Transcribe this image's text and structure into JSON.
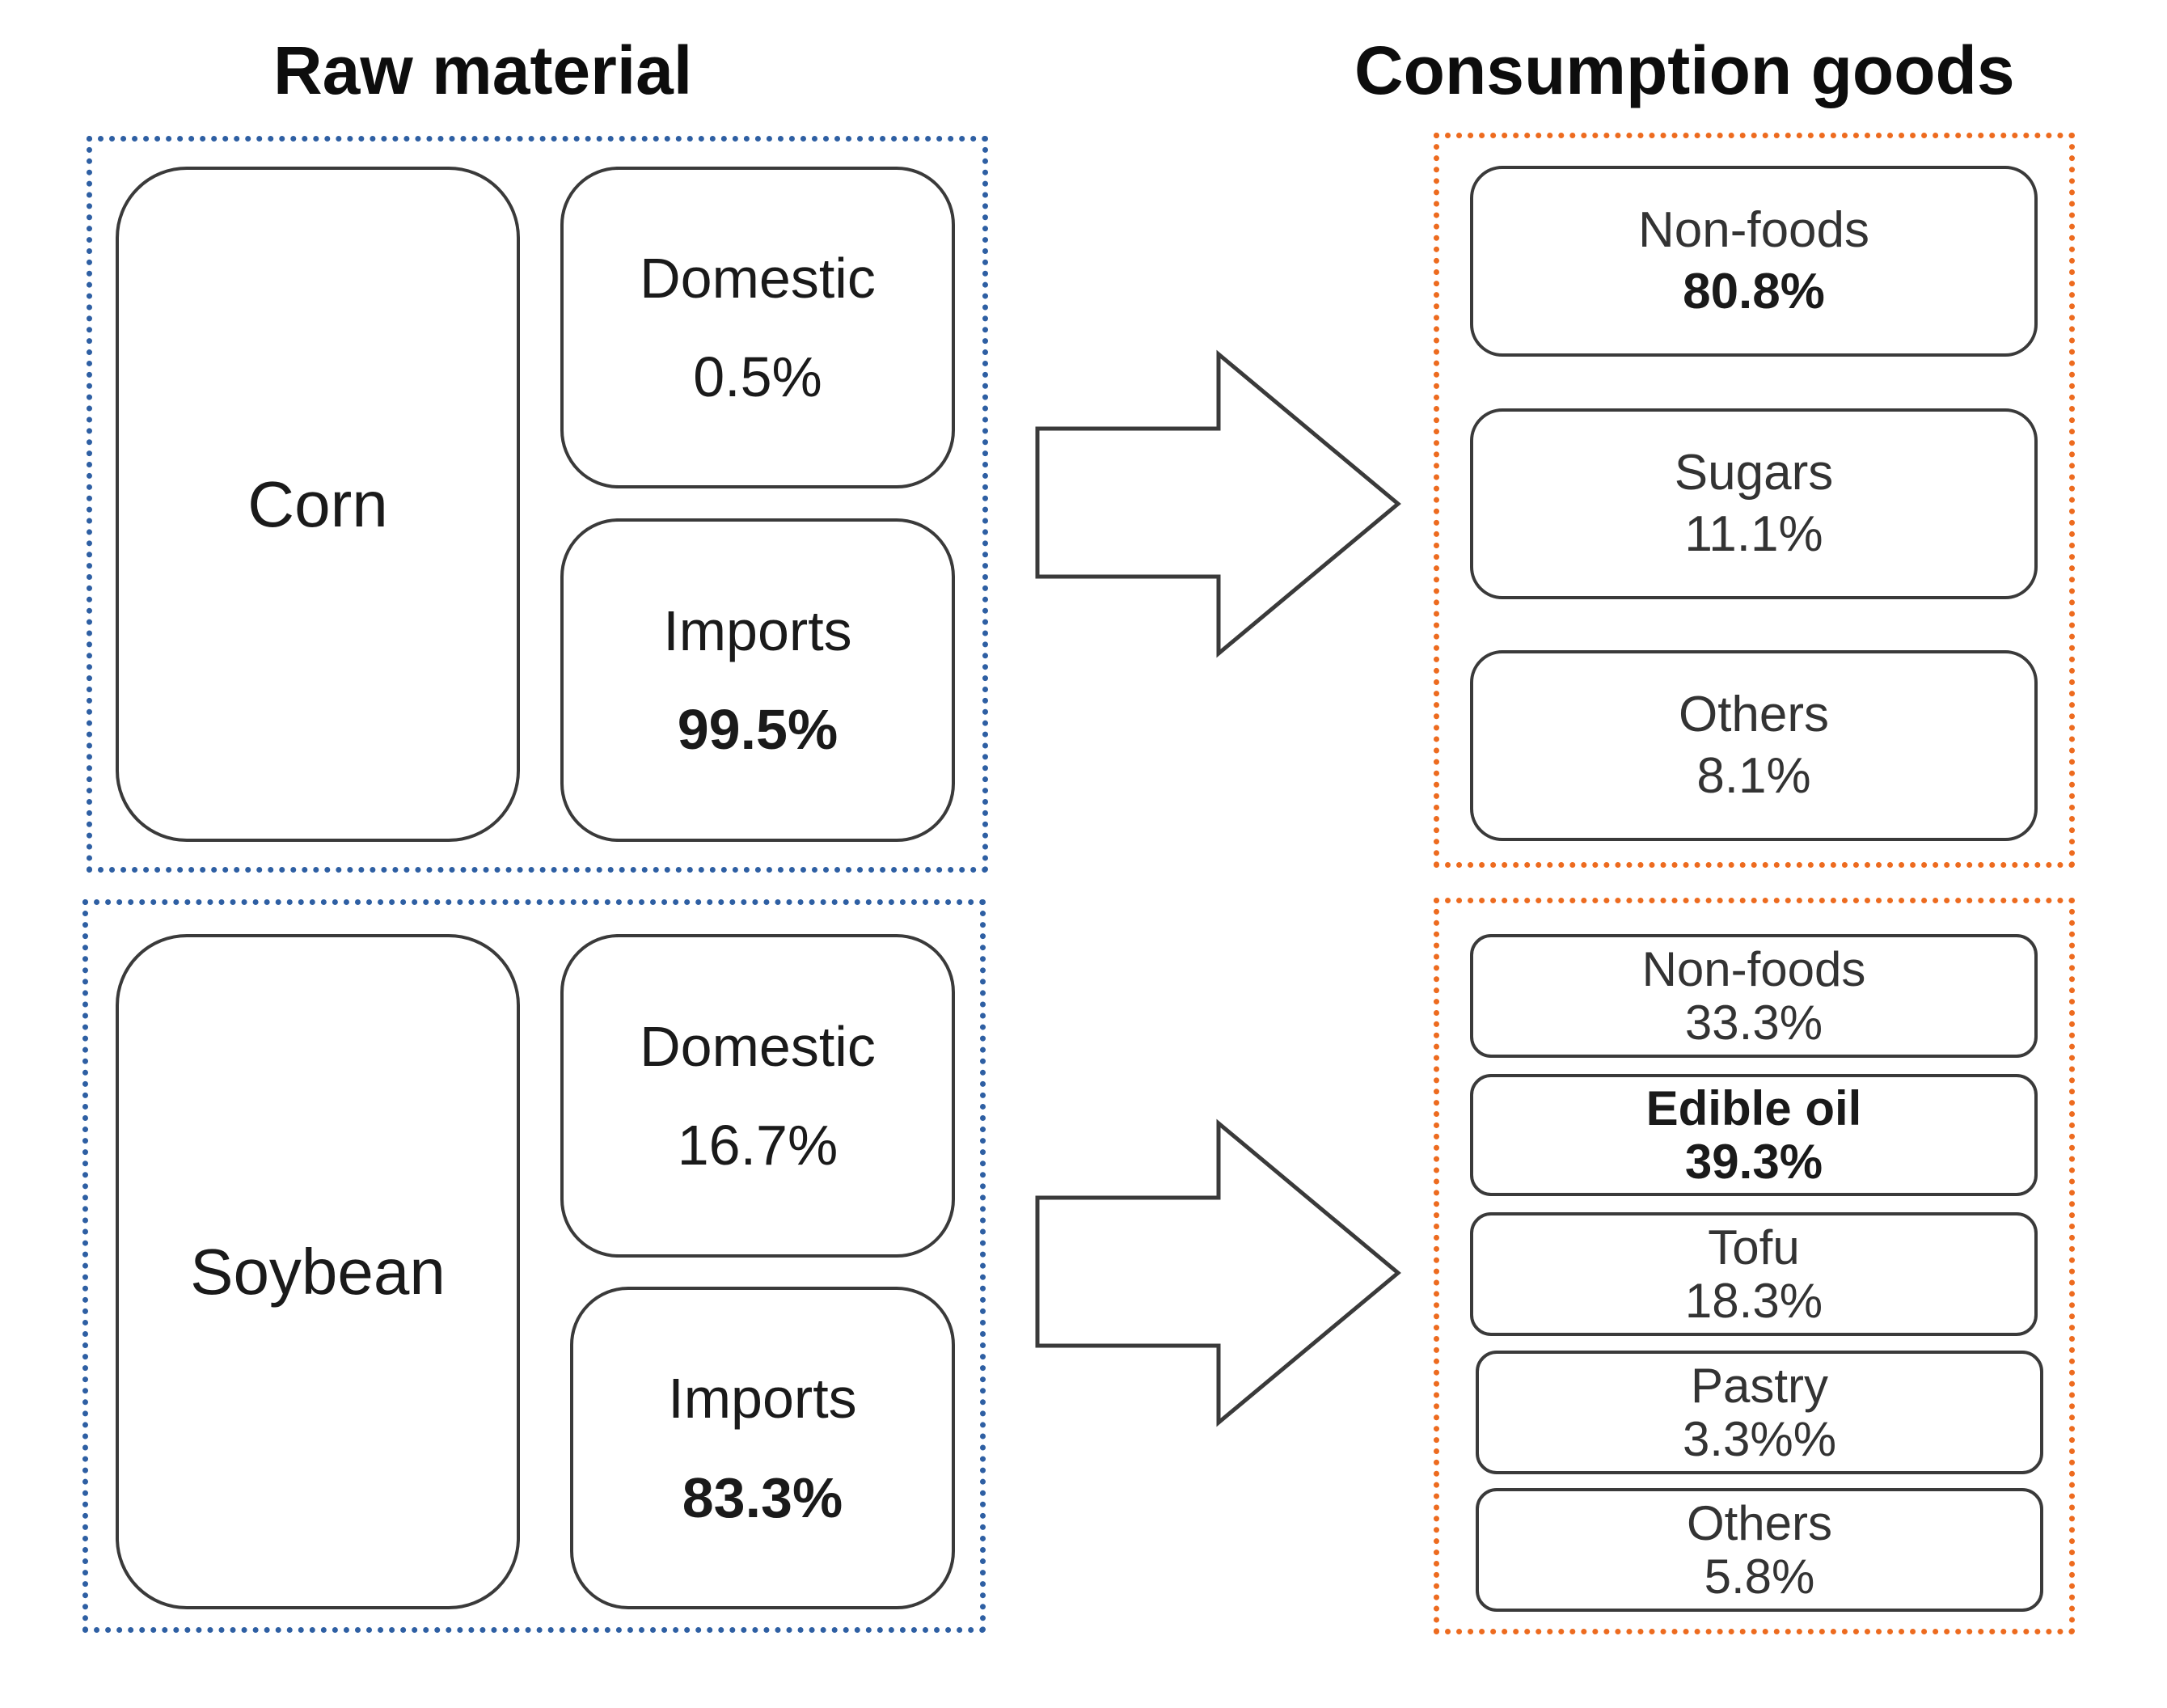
{
  "headings": {
    "raw_material": "Raw material",
    "consumption_goods": "Consumption goods"
  },
  "colors": {
    "raw_border": "#2e5fa3",
    "goods_border": "#ed6b1f",
    "box_border": "#3a3a3a"
  },
  "corn": {
    "name": "Corn",
    "domestic": {
      "label": "Domestic",
      "value": "0.5%"
    },
    "imports": {
      "label": "Imports",
      "value": "99.5%"
    },
    "goods": [
      {
        "label": "Non-foods",
        "value": "80.8%"
      },
      {
        "label": "Sugars",
        "value": "11.1%"
      },
      {
        "label": "Others",
        "value": "8.1%"
      }
    ]
  },
  "soybean": {
    "name": "Soybean",
    "domestic": {
      "label": "Domestic",
      "value": "16.7%"
    },
    "imports": {
      "label": "Imports",
      "value": "83.3%"
    },
    "goods": [
      {
        "label": "Non-foods",
        "value": "33.3%"
      },
      {
        "label": "Edible oil",
        "value": "39.3%"
      },
      {
        "label": "Tofu",
        "value": "18.3%"
      },
      {
        "label": "Pastry",
        "value": "3.3%%"
      },
      {
        "label": "Others",
        "value": "5.8%"
      }
    ]
  }
}
